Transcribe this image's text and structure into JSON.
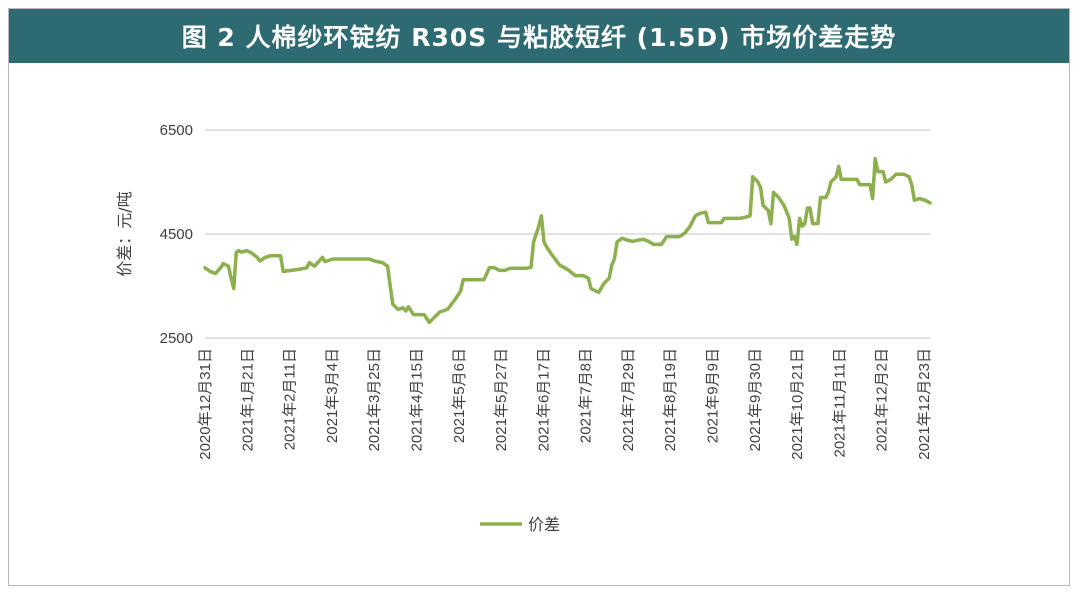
{
  "title": "图 2 人棉纱环锭纺 R30S 与粘胶短纤 (1.5D) 市场价差走势",
  "chart_data": {
    "type": "line",
    "title": "图 2 人棉纱环锭纺 R30S 与粘胶短纤 (1.5D) 市场价差走势",
    "ylabel": "价差：元/吨",
    "xlabel": "",
    "ylim": [
      2500,
      6500
    ],
    "yticks": [
      2500,
      4500,
      6500
    ],
    "grid": true,
    "legend_position": "bottom",
    "line_color": "#8db04e",
    "x_tick_labels": [
      "2020年12月31日",
      "2021年1月21日",
      "2021年2月11日",
      "2021年3月4日",
      "2021年3月25日",
      "2021年4月15日",
      "2021年5月6日",
      "2021年5月27日",
      "2021年6月17日",
      "2021年7月8日",
      "2021年7月29日",
      "2021年8月19日",
      "2021年9月9日",
      "2021年9月30日",
      "2021年10月21日",
      "2021年11月11日",
      "2021年12月2日",
      "2021年12月23日"
    ],
    "series": [
      {
        "name": "价差",
        "points": [
          [
            0,
            3850
          ],
          [
            2,
            3780
          ],
          [
            4,
            3740
          ],
          [
            6,
            3850
          ],
          [
            7,
            3930
          ],
          [
            9,
            3880
          ],
          [
            10,
            3650
          ],
          [
            11,
            3450
          ],
          [
            12,
            4150
          ],
          [
            13,
            4180
          ],
          [
            14,
            4150
          ],
          [
            16,
            4180
          ],
          [
            18,
            4130
          ],
          [
            20,
            4050
          ],
          [
            21,
            3980
          ],
          [
            23,
            4050
          ],
          [
            25,
            4080
          ],
          [
            27,
            4080
          ],
          [
            29,
            4080
          ],
          [
            30,
            3780
          ],
          [
            33,
            3800
          ],
          [
            36,
            3820
          ],
          [
            39,
            3850
          ],
          [
            40,
            3950
          ],
          [
            42,
            3880
          ],
          [
            45,
            4050
          ],
          [
            46,
            3970
          ],
          [
            49,
            4020
          ],
          [
            52,
            4020
          ],
          [
            56,
            4020
          ],
          [
            60,
            4020
          ],
          [
            63,
            4020
          ],
          [
            65,
            3980
          ],
          [
            68,
            3950
          ],
          [
            70,
            3880
          ],
          [
            71,
            3500
          ],
          [
            72,
            3150
          ],
          [
            74,
            3050
          ],
          [
            76,
            3080
          ],
          [
            77,
            3020
          ],
          [
            78,
            3100
          ],
          [
            80,
            2950
          ],
          [
            82,
            2950
          ],
          [
            84,
            2950
          ],
          [
            86,
            2800
          ],
          [
            88,
            2900
          ],
          [
            90,
            3000
          ],
          [
            93,
            3050
          ],
          [
            96,
            3250
          ],
          [
            98,
            3400
          ],
          [
            99,
            3620
          ],
          [
            101,
            3620
          ],
          [
            105,
            3620
          ],
          [
            107,
            3620
          ],
          [
            109,
            3850
          ],
          [
            111,
            3850
          ],
          [
            113,
            3800
          ],
          [
            115,
            3800
          ],
          [
            117,
            3840
          ],
          [
            120,
            3840
          ],
          [
            123,
            3840
          ],
          [
            125,
            3860
          ],
          [
            126,
            4350
          ],
          [
            128,
            4650
          ],
          [
            129,
            4850
          ],
          [
            130,
            4350
          ],
          [
            131,
            4250
          ],
          [
            133,
            4100
          ],
          [
            136,
            3900
          ],
          [
            139,
            3820
          ],
          [
            142,
            3700
          ],
          [
            145,
            3700
          ],
          [
            147,
            3650
          ],
          [
            148,
            3450
          ],
          [
            150,
            3400
          ],
          [
            151,
            3380
          ],
          [
            153,
            3550
          ],
          [
            155,
            3650
          ],
          [
            156,
            3900
          ],
          [
            157,
            4020
          ],
          [
            158,
            4350
          ],
          [
            160,
            4420
          ],
          [
            162,
            4380
          ],
          [
            164,
            4360
          ],
          [
            166,
            4380
          ],
          [
            168,
            4400
          ],
          [
            170,
            4360
          ],
          [
            172,
            4300
          ],
          [
            175,
            4300
          ],
          [
            177,
            4450
          ],
          [
            180,
            4450
          ],
          [
            182,
            4450
          ],
          [
            184,
            4520
          ],
          [
            186,
            4650
          ],
          [
            188,
            4850
          ],
          [
            190,
            4900
          ],
          [
            192,
            4920
          ],
          [
            193,
            4720
          ],
          [
            196,
            4720
          ],
          [
            198,
            4720
          ],
          [
            199,
            4800
          ],
          [
            202,
            4800
          ],
          [
            205,
            4800
          ],
          [
            207,
            4820
          ],
          [
            209,
            4850
          ],
          [
            210,
            5600
          ],
          [
            212,
            5500
          ],
          [
            213,
            5400
          ],
          [
            214,
            5050
          ],
          [
            215,
            5000
          ],
          [
            216,
            4950
          ],
          [
            217,
            4700
          ],
          [
            218,
            5300
          ],
          [
            220,
            5200
          ],
          [
            222,
            5050
          ],
          [
            224,
            4800
          ],
          [
            225,
            4400
          ],
          [
            226,
            4450
          ],
          [
            227,
            4300
          ],
          [
            228,
            4800
          ],
          [
            229,
            4650
          ],
          [
            230,
            4700
          ],
          [
            231,
            5000
          ],
          [
            232,
            5000
          ],
          [
            233,
            4700
          ],
          [
            235,
            4700
          ],
          [
            236,
            5200
          ],
          [
            238,
            5200
          ],
          [
            239,
            5300
          ],
          [
            240,
            5500
          ],
          [
            242,
            5600
          ],
          [
            243,
            5800
          ],
          [
            244,
            5550
          ],
          [
            246,
            5550
          ],
          [
            248,
            5550
          ],
          [
            250,
            5550
          ],
          [
            251,
            5450
          ],
          [
            253,
            5450
          ],
          [
            255,
            5450
          ],
          [
            256,
            5180
          ],
          [
            257,
            5950
          ],
          [
            258,
            5700
          ],
          [
            260,
            5700
          ],
          [
            261,
            5500
          ],
          [
            263,
            5550
          ],
          [
            265,
            5650
          ],
          [
            268,
            5650
          ],
          [
            270,
            5600
          ],
          [
            271,
            5450
          ],
          [
            272,
            5150
          ],
          [
            274,
            5180
          ],
          [
            276,
            5150
          ],
          [
            278,
            5100
          ]
        ]
      }
    ]
  }
}
